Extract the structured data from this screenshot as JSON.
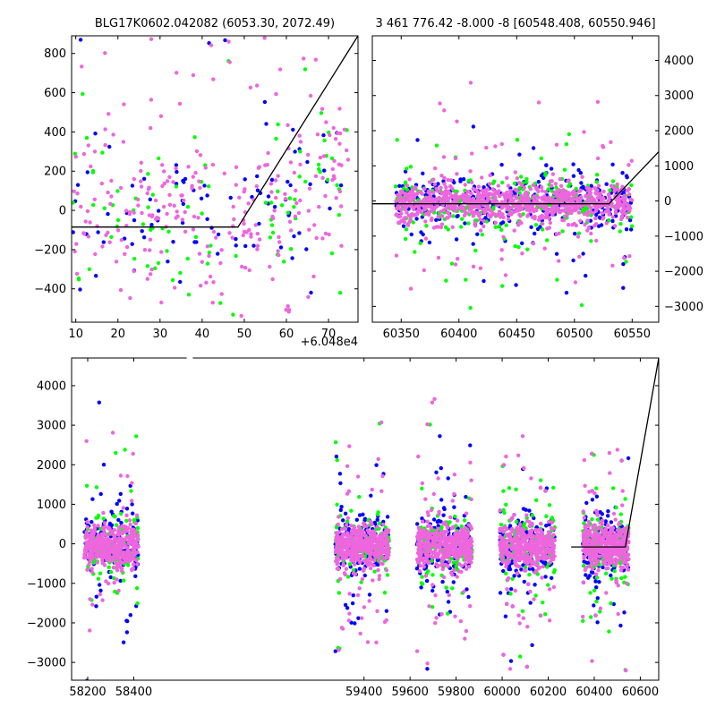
{
  "chart_data": [
    {
      "id": "top-left",
      "type": "scatter",
      "title": "BLG17K0602.042082 (6053.30, 2072.49)",
      "x_offset_label": "+6.048e4",
      "xlim": [
        9,
        77
      ],
      "ylim": [
        -570,
        890
      ],
      "xticks": [
        10,
        20,
        30,
        40,
        50,
        60,
        70
      ],
      "yticks": [
        -400,
        -200,
        0,
        200,
        400,
        600,
        800
      ],
      "ytick_side": "left",
      "model_line": {
        "x": [
          9,
          48.5,
          77
        ],
        "y": [
          -85,
          -85,
          890
        ]
      },
      "series": [
        {
          "color": "#0000ff",
          "cluster": {
            "x": [
              9,
              75
            ],
            "y": [
              -540,
              880
            ],
            "center": 40,
            "count": 90
          }
        },
        {
          "color": "#00ff00",
          "cluster": {
            "x": [
              9,
              75
            ],
            "y": [
              -540,
              880
            ],
            "center": 40,
            "count": 90
          }
        },
        {
          "color": "#ee66dd",
          "cluster": {
            "x": [
              9,
              75
            ],
            "y": [
              -540,
              880
            ],
            "center": 40,
            "count": 260
          }
        }
      ]
    },
    {
      "id": "top-right",
      "type": "scatter",
      "title": "3 461 776.42 -8.000 -8 [60548.408, 60550.946]",
      "xlim": [
        60325,
        60573
      ],
      "ylim": [
        -3450,
        4700
      ],
      "xticks": [
        60350,
        60400,
        60450,
        60500,
        60550
      ],
      "yticks": [
        -3000,
        -2000,
        -1000,
        0,
        1000,
        2000,
        3000,
        4000
      ],
      "ytick_side": "right",
      "model_line": {
        "x": [
          60325,
          60530,
          60573
        ],
        "y": [
          -80,
          -80,
          1400
        ]
      },
      "series": [
        {
          "color": "#0000ff",
          "cluster": {
            "x": [
              60345,
              60550
            ],
            "y": [
              -3000,
              4500
            ],
            "center": 0,
            "count": 350
          }
        },
        {
          "color": "#00ff00",
          "cluster": {
            "x": [
              60345,
              60550
            ],
            "y": [
              -3000,
              4500
            ],
            "center": 0,
            "count": 250
          }
        },
        {
          "color": "#ee66dd",
          "cluster": {
            "x": [
              60345,
              60550
            ],
            "y": [
              -3000,
              4500
            ],
            "center": 0,
            "count": 900
          }
        }
      ]
    },
    {
      "id": "bottom",
      "type": "scatter",
      "title": "",
      "xlim": [
        58130,
        60680
      ],
      "ylim": [
        -3450,
        4700
      ],
      "xticks": [
        58200,
        58400,
        59400,
        59600,
        59800,
        60000,
        60200,
        60400,
        60600
      ],
      "yticks": [
        -3000,
        -2000,
        -1000,
        0,
        1000,
        2000,
        3000,
        4000
      ],
      "ytick_side": "left",
      "model_line": {
        "x": [
          60300,
          60535,
          60680
        ],
        "y": [
          -80,
          -80,
          4700
        ]
      },
      "seasons": [
        {
          "x": [
            58185,
            58420
          ]
        },
        {
          "x": [
            59275,
            59510
          ]
        },
        {
          "x": [
            59630,
            59870
          ]
        },
        {
          "x": [
            59990,
            60230
          ]
        },
        {
          "x": [
            60350,
            60550
          ]
        }
      ],
      "series": [
        {
          "color": "#0000ff",
          "per_season": 170
        },
        {
          "color": "#00ff00",
          "per_season": 110
        },
        {
          "color": "#ee66dd",
          "per_season": 420
        }
      ]
    }
  ]
}
